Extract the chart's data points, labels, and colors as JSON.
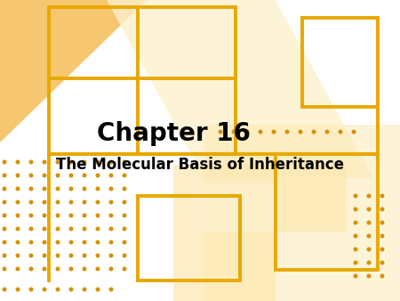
{
  "title": "Chapter 16",
  "subtitle": "The Molecular Basis of Inheritance",
  "bg_color": "#ffffff",
  "orange_fill": "#f5c060",
  "orange_pale": "#fde8b0",
  "orange_very_pale": "#fdf0cc",
  "border_color": "#e8a800",
  "dot_color": "#d4920a",
  "title_color": "#000000",
  "subtitle_color": "#000000",
  "title_fontsize": 20,
  "subtitle_fontsize": 12
}
